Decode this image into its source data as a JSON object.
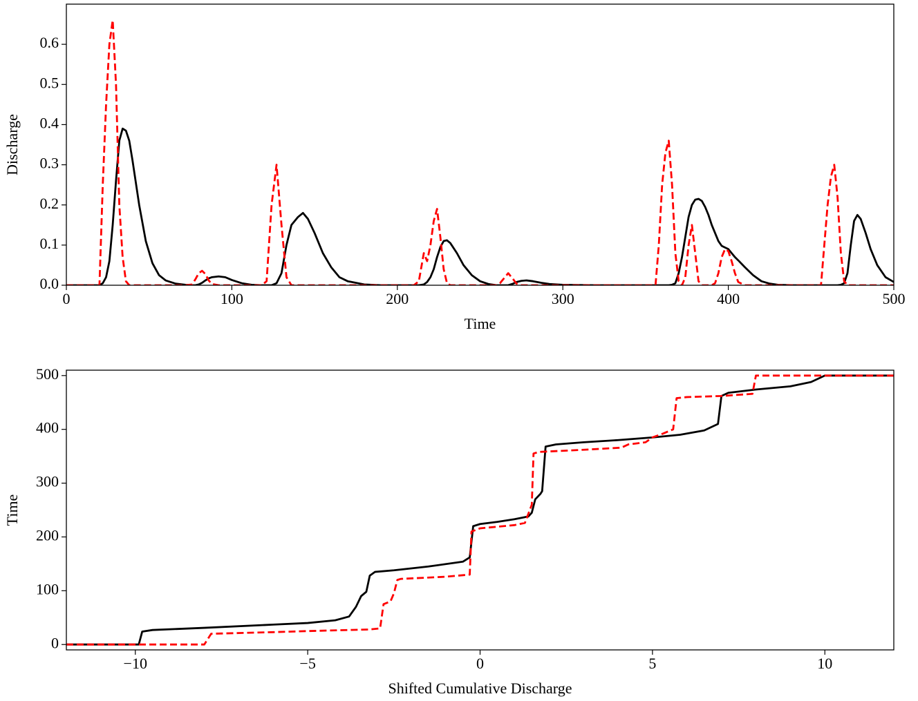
{
  "chart_data": [
    {
      "type": "line",
      "x_label": "Time",
      "y_label": "Discharge",
      "x": [
        0,
        10,
        20,
        22,
        24,
        26,
        28,
        30,
        32,
        34,
        36,
        38,
        40,
        44,
        48,
        52,
        56,
        60,
        66,
        72,
        76,
        78,
        80,
        82,
        84,
        86,
        88,
        92,
        96,
        100,
        106,
        112,
        118,
        121,
        124,
        127,
        130,
        133,
        136,
        140,
        143,
        146,
        150,
        155,
        160,
        165,
        170,
        180,
        190,
        200,
        210,
        213,
        216,
        218,
        220,
        222,
        224,
        226,
        228,
        230,
        232,
        236,
        240,
        245,
        250,
        255,
        260,
        262,
        265,
        267,
        270,
        272,
        275,
        278,
        282,
        287,
        292,
        300,
        320,
        340,
        356,
        358,
        360,
        362,
        364,
        366,
        368,
        370,
        372,
        374,
        376,
        378,
        380,
        382,
        384,
        386,
        388,
        390,
        392,
        394,
        396,
        398,
        400,
        402,
        404,
        406,
        410,
        415,
        420,
        425,
        430,
        440,
        456,
        458,
        460,
        462,
        464,
        466,
        468,
        470,
        472,
        474,
        476,
        478,
        480,
        483,
        486,
        490,
        495,
        500
      ],
      "series": [
        {
          "color": "#000000",
          "linestyle": "solid",
          "values": [
            0,
            0,
            0,
            0.005,
            0.02,
            0.06,
            0.15,
            0.26,
            0.36,
            0.39,
            0.385,
            0.36,
            0.31,
            0.2,
            0.11,
            0.055,
            0.025,
            0.012,
            0.004,
            0.001,
            0,
            0,
            0.002,
            0.006,
            0.012,
            0.017,
            0.02,
            0.022,
            0.02,
            0.013,
            0.005,
            0.001,
            0,
            0,
            0,
            0.005,
            0.03,
            0.1,
            0.15,
            0.17,
            0.18,
            0.165,
            0.13,
            0.08,
            0.045,
            0.02,
            0.01,
            0.002,
            0,
            0,
            0,
            0,
            0.002,
            0.008,
            0.02,
            0.04,
            0.07,
            0.095,
            0.11,
            0.112,
            0.105,
            0.08,
            0.05,
            0.025,
            0.01,
            0.003,
            0,
            0,
            0,
            0,
            0.004,
            0.008,
            0.011,
            0.012,
            0.01,
            0.006,
            0.003,
            0.001,
            0,
            0,
            0,
            0,
            0,
            0,
            0,
            0.001,
            0.005,
            0.03,
            0.07,
            0.12,
            0.17,
            0.2,
            0.213,
            0.215,
            0.21,
            0.195,
            0.175,
            0.15,
            0.13,
            0.11,
            0.098,
            0.094,
            0.09,
            0.08,
            0.07,
            0.062,
            0.045,
            0.025,
            0.01,
            0.004,
            0.001,
            0,
            0,
            0,
            0,
            0,
            0,
            0,
            0.001,
            0.005,
            0.03,
            0.1,
            0.16,
            0.175,
            0.165,
            0.13,
            0.09,
            0.05,
            0.02,
            0.008
          ]
        },
        {
          "color": "#ff0000",
          "linestyle": "dashed",
          "values": [
            0,
            0,
            0,
            0.25,
            0.45,
            0.6,
            0.66,
            0.5,
            0.2,
            0.07,
            0.01,
            0,
            0,
            0,
            0,
            0,
            0,
            0,
            0,
            0,
            0.002,
            0.015,
            0.03,
            0.036,
            0.028,
            0.012,
            0.003,
            0,
            0,
            0,
            0,
            0,
            0,
            0.01,
            0.2,
            0.3,
            0.15,
            0.02,
            0,
            0,
            0,
            0,
            0,
            0,
            0,
            0,
            0,
            0,
            0,
            0,
            0,
            0.01,
            0.08,
            0.06,
            0.1,
            0.16,
            0.19,
            0.12,
            0.04,
            0.005,
            0,
            0,
            0,
            0,
            0,
            0,
            0,
            0.005,
            0.02,
            0.03,
            0.015,
            0.004,
            0,
            0,
            0,
            0,
            0,
            0,
            0,
            0,
            0,
            0.1,
            0.25,
            0.33,
            0.36,
            0.25,
            0.08,
            0.01,
            0,
            0.02,
            0.1,
            0.15,
            0.08,
            0.01,
            0,
            0,
            0,
            0,
            0.005,
            0.03,
            0.07,
            0.09,
            0.085,
            0.06,
            0.03,
            0.008,
            0,
            0,
            0,
            0,
            0,
            0,
            0,
            0.1,
            0.2,
            0.27,
            0.3,
            0.22,
            0.08,
            0.01,
            0,
            0,
            0,
            0,
            0,
            0,
            0,
            0,
            0,
            0
          ]
        }
      ],
      "xlim": [
        0,
        500
      ],
      "xticks": [
        0,
        100,
        200,
        300,
        400,
        500
      ],
      "ylim": [
        0,
        0.7
      ],
      "yticks": [
        {
          "value": 0,
          "label": "0.0"
        },
        0.1,
        0.2,
        0.3,
        0.4,
        0.5,
        0.6
      ]
    },
    {
      "type": "line",
      "x_label": "Shifted Cumulative Discharge",
      "y_label": "Time",
      "series": [
        {
          "color": "#000000",
          "linestyle": "solid",
          "x": [
            -12,
            -9.9,
            -9.8,
            -9.5,
            -8,
            -6,
            -5,
            -4.2,
            -3.8,
            -3.6,
            -3.45,
            -3.3,
            -3.2,
            -3.05,
            -2.5,
            -1.5,
            -0.5,
            -0.3,
            -0.2,
            0,
            0.5,
            1,
            1.4,
            1.5,
            1.6,
            1.75,
            1.8,
            1.9,
            2.2,
            3,
            4,
            5,
            5.8,
            6.5,
            6.9,
            7,
            7.2,
            8,
            9,
            9.6,
            9.9,
            10,
            12
          ],
          "values": [
            0,
            0,
            24,
            27,
            31,
            37,
            40,
            45,
            52,
            70,
            90,
            98,
            128,
            135,
            138,
            145,
            154,
            162,
            220,
            224,
            228,
            233,
            238,
            245,
            270,
            280,
            285,
            368,
            372,
            376,
            380,
            385,
            390,
            398,
            410,
            462,
            468,
            474,
            480,
            488,
            497,
            500,
            500
          ]
        },
        {
          "color": "#ff0000",
          "linestyle": "dashed",
          "x": [
            -12,
            -8,
            -7.8,
            -6,
            -5,
            -3.2,
            -2.9,
            -2.8,
            -2.6,
            -2.5,
            -2.4,
            -2.3,
            -1,
            -0.3,
            -0.25,
            0,
            1,
            1.3,
            1.5,
            1.55,
            1.7,
            3,
            4.1,
            4.3,
            4.8,
            5,
            5.3,
            5.6,
            5.7,
            6,
            7,
            7.9,
            8,
            12
          ],
          "values": [
            0,
            0,
            20,
            23,
            25,
            28,
            30,
            75,
            80,
            95,
            120,
            122,
            126,
            130,
            210,
            216,
            222,
            226,
            260,
            355,
            358,
            362,
            366,
            372,
            376,
            385,
            392,
            400,
            458,
            460,
            462,
            466,
            500,
            500
          ]
        }
      ],
      "xlim": [
        -12,
        12
      ],
      "xticks": [
        {
          "value": -10,
          "label": "−10"
        },
        {
          "value": -5,
          "label": "−5"
        },
        0,
        5,
        10
      ],
      "ylim": [
        -10,
        510
      ],
      "yticks": [
        0,
        100,
        200,
        300,
        400,
        500
      ]
    }
  ]
}
